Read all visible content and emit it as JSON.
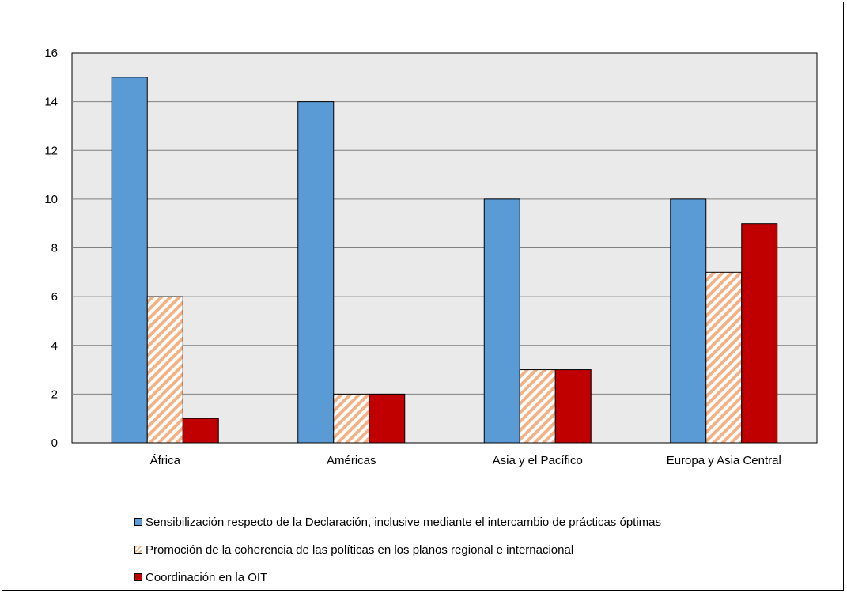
{
  "chart_data": {
    "type": "bar",
    "categories": [
      "África",
      "Américas",
      "Asia y el Pacífico",
      "Europa y Asia Central"
    ],
    "series": [
      {
        "name": "Sensibilización respecto de la Declaración, inclusive mediante el intercambio de prácticas óptimas",
        "values": [
          15,
          14,
          10,
          10
        ],
        "color": "#5b9bd5",
        "pattern": "solid"
      },
      {
        "name": "Promoción de la coherencia de las políticas en los planos regional e internacional",
        "values": [
          6,
          2,
          3,
          7
        ],
        "color": "#f4b183",
        "pattern": "hatch"
      },
      {
        "name": "Coordinación en la OIT",
        "values": [
          1,
          2,
          3,
          9
        ],
        "color": "#c00000",
        "pattern": "solid"
      }
    ],
    "ylim": [
      0,
      16
    ],
    "yticks": [
      "0",
      "2",
      "4",
      "6",
      "8",
      "10",
      "12",
      "14",
      "16"
    ],
    "grid": true,
    "plot_background": "#eaeaea",
    "legend_position": "bottom",
    "title": "",
    "xlabel": "",
    "ylabel": ""
  }
}
